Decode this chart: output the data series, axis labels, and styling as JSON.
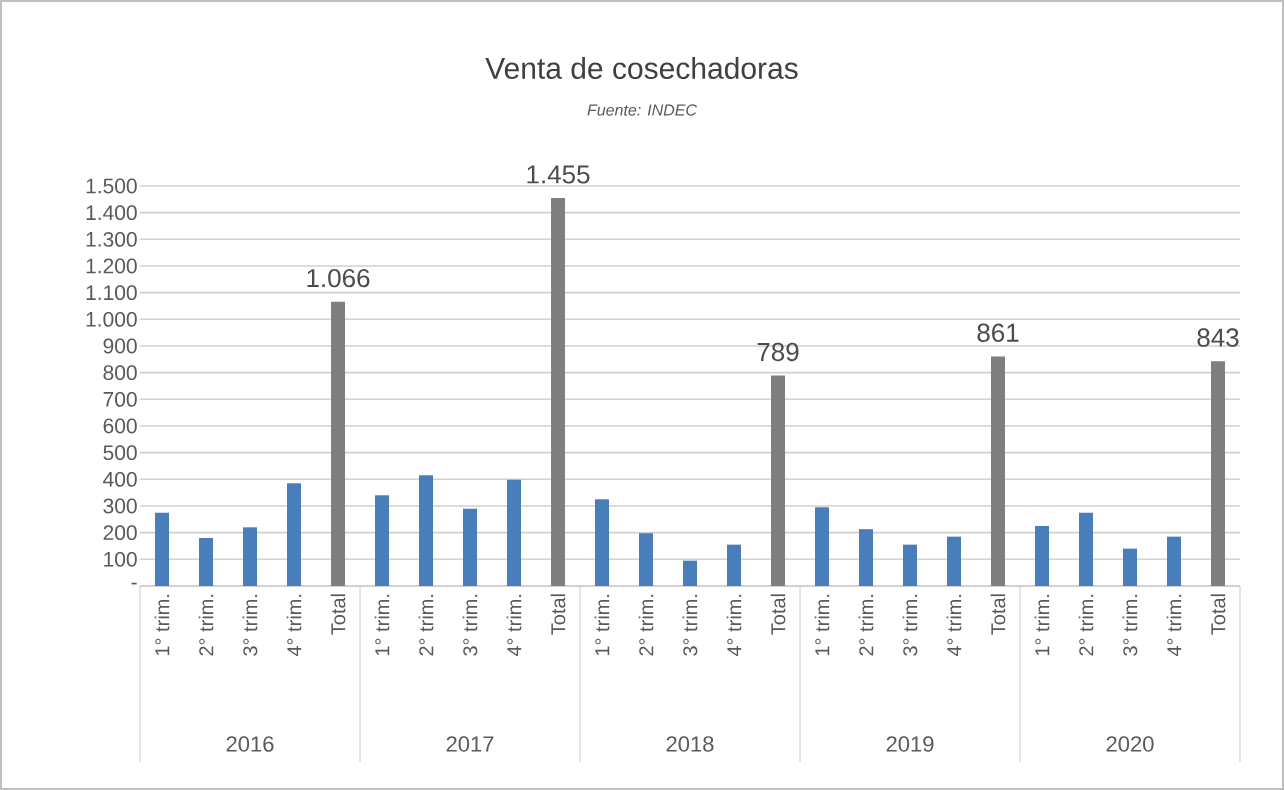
{
  "chart_data": {
    "type": "bar",
    "title": "Venta de cosechadoras",
    "subtitle": "Fuente: INDEC",
    "categories": [
      "1° trim.",
      "2° trim.",
      "3° trim.",
      "4° trim.",
      "Total",
      "1° trim.",
      "2° trim.",
      "3° trim.",
      "4° trim.",
      "Total",
      "1° trim.",
      "2° trim.",
      "3° trim.",
      "4° trim.",
      "Total",
      "1° trim.",
      "2° trim.",
      "3° trim.",
      "4° trim.",
      "Total",
      "1° trim.",
      "2° trim.",
      "3° trim.",
      "4° trim.",
      "Total"
    ],
    "values": [
      275,
      180,
      220,
      385,
      1066,
      340,
      415,
      290,
      398,
      1455,
      325,
      198,
      95,
      155,
      789,
      295,
      213,
      155,
      185,
      861,
      225,
      275,
      140,
      185,
      843
    ],
    "colors": [
      "#4a7ebb",
      "#4a7ebb",
      "#4a7ebb",
      "#4a7ebb",
      "#7f7f7f",
      "#4a7ebb",
      "#4a7ebb",
      "#4a7ebb",
      "#4a7ebb",
      "#7f7f7f",
      "#4a7ebb",
      "#4a7ebb",
      "#4a7ebb",
      "#4a7ebb",
      "#7f7f7f",
      "#4a7ebb",
      "#4a7ebb",
      "#4a7ebb",
      "#4a7ebb",
      "#7f7f7f",
      "#4a7ebb",
      "#4a7ebb",
      "#4a7ebb",
      "#4a7ebb",
      "#7f7f7f"
    ],
    "value_labels": [
      null,
      null,
      null,
      null,
      "1.066",
      null,
      null,
      null,
      null,
      "1.455",
      null,
      null,
      null,
      null,
      "789",
      null,
      null,
      null,
      null,
      "861",
      null,
      null,
      null,
      null,
      "843"
    ],
    "annotations": [
      "2016",
      "2017",
      "2018",
      "2019",
      "2020"
    ],
    "ylim": [
      0,
      1500
    ],
    "yticks": [
      {
        "value": 0,
        "label": "-"
      },
      100,
      200,
      300,
      400,
      500,
      600,
      700,
      800,
      900,
      {
        "value": 1000,
        "label": "1.000"
      },
      {
        "value": 1100,
        "label": "1.100"
      },
      {
        "value": 1200,
        "label": "1.200"
      },
      {
        "value": 1300,
        "label": "1.300"
      },
      {
        "value": 1400,
        "label": "1.400"
      },
      {
        "value": 1500,
        "label": "1.500"
      }
    ],
    "grid": "y"
  }
}
